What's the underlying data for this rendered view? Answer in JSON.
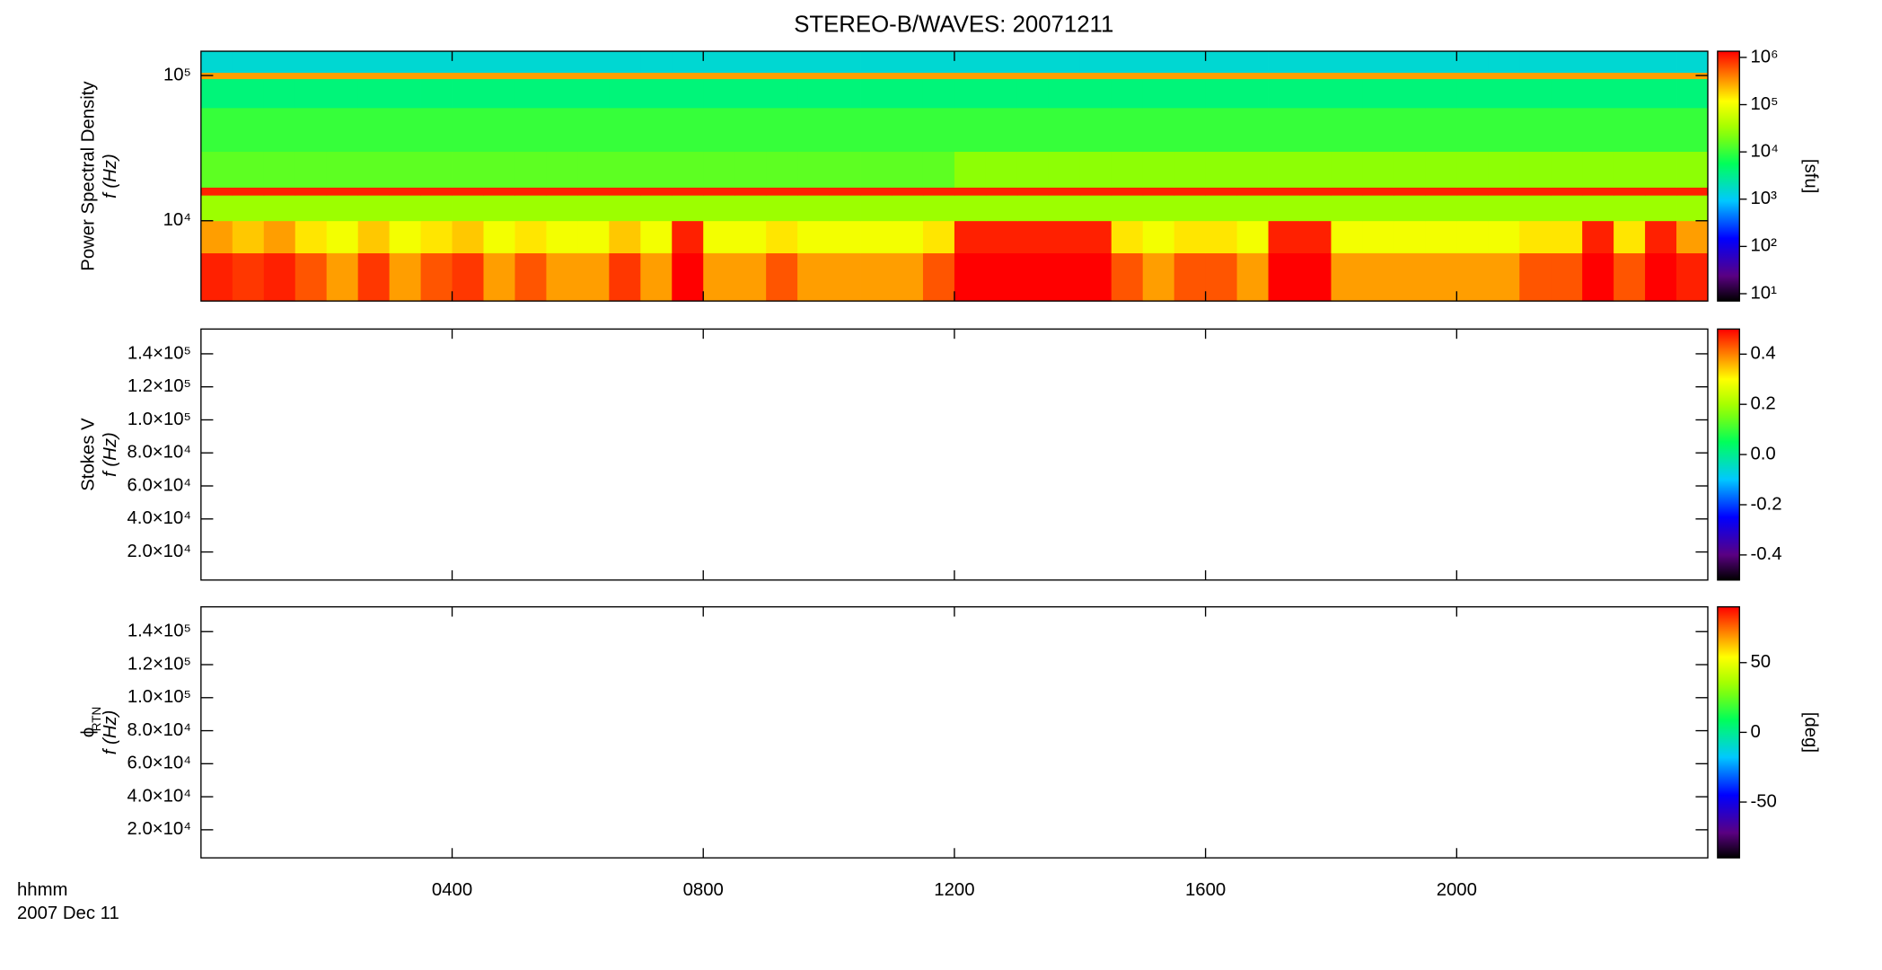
{
  "title": "STEREO-B/WAVES: 20071211",
  "xlabel": "hhmm",
  "date": "2007 Dec 11",
  "xlim": [
    0,
    24
  ],
  "xticks": [
    {
      "value": 4,
      "label": "0400"
    },
    {
      "value": 8,
      "label": "0800"
    },
    {
      "value": 12,
      "label": "1200"
    },
    {
      "value": 16,
      "label": "1600"
    },
    {
      "value": 20,
      "label": "2000"
    }
  ],
  "chart_data": [
    {
      "type": "heatmap",
      "ylabel": [
        "Power Spectral Density",
        "f (Hz)"
      ],
      "yscale": "log",
      "ylim": [
        2800,
        147000
      ],
      "yticks": [
        {
          "value": 10000,
          "label": "10⁴"
        },
        {
          "value": 100000,
          "label": "10⁵"
        }
      ],
      "colorbar": {
        "label": "[sfu]",
        "scale": "log",
        "lim": [
          7,
          1350000
        ],
        "ticks": [
          {
            "value": 10,
            "label": "10¹"
          },
          {
            "value": 100,
            "label": "10²"
          },
          {
            "value": 1000,
            "label": "10³"
          },
          {
            "value": 10000,
            "label": "10⁴"
          },
          {
            "value": 100000,
            "label": "10⁵"
          },
          {
            "value": 1000000,
            "label": "10⁶"
          }
        ]
      },
      "x": [
        0,
        0.5,
        1,
        1.5,
        2,
        2.5,
        3,
        3.5,
        4,
        4.5,
        5,
        5.5,
        6,
        6.5,
        7,
        7.5,
        8,
        8.5,
        9,
        9.5,
        10,
        10.5,
        11,
        11.5,
        12,
        12.5,
        13,
        13.5,
        14,
        14.5,
        15,
        15.5,
        16,
        16.5,
        17,
        17.5,
        18,
        18.5,
        19,
        19.5,
        20,
        20.5,
        21,
        21.5,
        22,
        22.5,
        23,
        23.5,
        24
      ],
      "y": [
        2800,
        6000,
        10000,
        15000,
        17000,
        30000,
        60000,
        95000,
        105000,
        147000
      ],
      "z": [
        [
          1000000,
          800000,
          1000000,
          600000,
          300000,
          800000,
          300000,
          600000,
          800000,
          300000,
          600000,
          300000,
          300000,
          800000,
          300000,
          2000000,
          300000,
          300000,
          600000,
          300000,
          300000,
          300000,
          300000,
          600000,
          2000000,
          2000000,
          2000000,
          2000000,
          2000000,
          600000,
          300000,
          600000,
          600000,
          300000,
          2000000,
          2000000,
          300000,
          300000,
          300000,
          300000,
          300000,
          300000,
          600000,
          600000,
          2000000,
          600000,
          2000000,
          1000000
        ],
        [
          300000,
          200000,
          300000,
          150000,
          100000,
          200000,
          100000,
          150000,
          200000,
          100000,
          150000,
          100000,
          100000,
          200000,
          100000,
          1000000,
          100000,
          100000,
          150000,
          100000,
          100000,
          100000,
          100000,
          150000,
          1000000,
          1000000,
          1000000,
          1000000,
          1000000,
          150000,
          100000,
          150000,
          150000,
          100000,
          1000000,
          1000000,
          100000,
          100000,
          100000,
          100000,
          100000,
          100000,
          150000,
          150000,
          1000000,
          150000,
          1000000,
          300000
        ],
        [
          30000,
          30000,
          30000,
          30000,
          30000,
          30000,
          30000,
          30000,
          30000,
          30000,
          30000,
          30000,
          30000,
          30000,
          30000,
          30000,
          30000,
          30000,
          30000,
          30000,
          30000,
          30000,
          30000,
          30000,
          30000,
          30000,
          30000,
          30000,
          30000,
          30000,
          30000,
          30000,
          30000,
          30000,
          30000,
          30000,
          30000,
          30000,
          30000,
          30000,
          30000,
          30000,
          30000,
          30000,
          30000,
          30000,
          30000,
          30000
        ],
        [
          1000000,
          1000000,
          1000000,
          1000000,
          1000000,
          1000000,
          1000000,
          1000000,
          1000000,
          1000000,
          1000000,
          1000000,
          1000000,
          1000000,
          1000000,
          1000000,
          1000000,
          1000000,
          1000000,
          1000000,
          1000000,
          1000000,
          1000000,
          1000000,
          1000000,
          1000000,
          1000000,
          1000000,
          1000000,
          1000000,
          1000000,
          1000000,
          1000000,
          1000000,
          1000000,
          1000000,
          1000000,
          1000000,
          1000000,
          1000000,
          1000000,
          1000000,
          1000000,
          1000000,
          1000000,
          1000000,
          1000000,
          1000000
        ],
        [
          15000,
          15000,
          15000,
          15000,
          15000,
          15000,
          15000,
          15000,
          15000,
          15000,
          15000,
          15000,
          15000,
          15000,
          15000,
          15000,
          15000,
          15000,
          15000,
          15000,
          15000,
          15000,
          15000,
          15000,
          25000,
          25000,
          25000,
          25000,
          25000,
          25000,
          25000,
          25000,
          25000,
          25000,
          25000,
          25000,
          25000,
          25000,
          25000,
          25000,
          25000,
          25000,
          25000,
          25000,
          25000,
          25000,
          25000,
          25000
        ],
        [
          10000,
          10000,
          10000,
          10000,
          10000,
          10000,
          10000,
          10000,
          10000,
          10000,
          10000,
          10000,
          10000,
          10000,
          10000,
          10000,
          10000,
          10000,
          10000,
          10000,
          10000,
          10000,
          10000,
          10000,
          10000,
          10000,
          10000,
          10000,
          10000,
          10000,
          10000,
          10000,
          10000,
          10000,
          10000,
          10000,
          10000,
          10000,
          10000,
          10000,
          10000,
          10000,
          10000,
          10000,
          10000,
          10000,
          10000,
          10000
        ],
        [
          4000,
          4000,
          4000,
          4000,
          4000,
          4000,
          4000,
          4000,
          4000,
          4000,
          4000,
          4000,
          4000,
          4000,
          4000,
          4000,
          4000,
          4000,
          4000,
          4000,
          4000,
          4000,
          4000,
          4000,
          4000,
          4000,
          4000,
          4000,
          4000,
          4000,
          4000,
          4000,
          4000,
          4000,
          4000,
          4000,
          4000,
          4000,
          4000,
          4000,
          4000,
          4000,
          4000,
          4000,
          4000,
          4000,
          4000,
          4000
        ],
        [
          300000,
          300000,
          300000,
          300000,
          300000,
          300000,
          300000,
          300000,
          300000,
          300000,
          300000,
          300000,
          300000,
          300000,
          300000,
          300000,
          300000,
          300000,
          300000,
          300000,
          300000,
          300000,
          300000,
          300000,
          300000,
          300000,
          300000,
          300000,
          300000,
          300000,
          300000,
          300000,
          300000,
          300000,
          300000,
          300000,
          300000,
          300000,
          300000,
          300000,
          300000,
          300000,
          300000,
          300000,
          300000,
          300000,
          300000,
          300000
        ],
        [
          1500,
          1500,
          1500,
          1500,
          1500,
          1500,
          1500,
          1500,
          1500,
          1500,
          1500,
          1500,
          1500,
          1500,
          1500,
          1500,
          1500,
          1500,
          1500,
          1500,
          1500,
          1500,
          1500,
          1500,
          1500,
          1500,
          1500,
          1500,
          1500,
          1500,
          1500,
          1500,
          1500,
          1500,
          1500,
          1500,
          1500,
          1500,
          1500,
          1500,
          1500,
          1500,
          1500,
          1500,
          1500,
          1500,
          1500,
          1500
        ]
      ]
    },
    {
      "type": "heatmap",
      "ylabel": [
        "Stokes V",
        "f (Hz)"
      ],
      "yscale": "linear",
      "ylim": [
        3000,
        155000
      ],
      "yticks": [
        {
          "value": 20000,
          "label": "2.0×10⁴"
        },
        {
          "value": 40000,
          "label": "4.0×10⁴"
        },
        {
          "value": 60000,
          "label": "6.0×10⁴"
        },
        {
          "value": 80000,
          "label": "8.0×10⁴"
        },
        {
          "value": 100000,
          "label": "1.0×10⁵"
        },
        {
          "value": 120000,
          "label": "1.2×10⁵"
        },
        {
          "value": 140000,
          "label": "1.4×10⁵"
        }
      ],
      "colorbar": {
        "scale": "linear",
        "lim": [
          -0.5,
          0.5
        ],
        "ticks": [
          -0.4,
          -0.2,
          {
            "value": 0,
            "label": "0.0"
          },
          0.2,
          0.4
        ]
      }
    },
    {
      "type": "heatmap",
      "ylabel": [
        "ϕ",
        "f (Hz)"
      ],
      "ylabel_sub": "RTN",
      "yscale": "linear",
      "ylim": [
        3000,
        155000
      ],
      "yticks": [
        {
          "value": 20000,
          "label": "2.0×10⁴"
        },
        {
          "value": 40000,
          "label": "4.0×10⁴"
        },
        {
          "value": 60000,
          "label": "6.0×10⁴"
        },
        {
          "value": 80000,
          "label": "8.0×10⁴"
        },
        {
          "value": 100000,
          "label": "1.0×10⁵"
        },
        {
          "value": 120000,
          "label": "1.2×10⁵"
        },
        {
          "value": 140000,
          "label": "1.4×10⁵"
        }
      ],
      "colorbar": {
        "label": "[deg]",
        "scale": "linear",
        "lim": [
          -90,
          90
        ],
        "ticks": [
          -50,
          0,
          50
        ]
      }
    }
  ]
}
